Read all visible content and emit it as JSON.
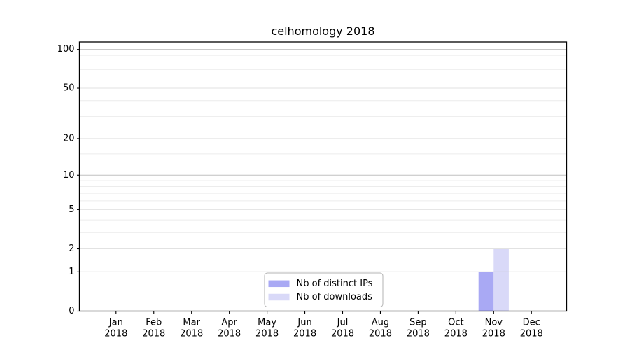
{
  "chart_data": {
    "type": "bar",
    "title": "celhomology 2018",
    "categories": [
      "Jan",
      "Feb",
      "Mar",
      "Apr",
      "May",
      "Jun",
      "Jul",
      "Aug",
      "Sep",
      "Oct",
      "Nov",
      "Dec"
    ],
    "x_sublabel_year": "2018",
    "series": [
      {
        "name": "Nb of distinct IPs",
        "color": "#a9a9f4",
        "values": [
          0,
          0,
          0,
          0,
          0,
          0,
          0,
          0,
          0,
          0,
          1,
          0
        ]
      },
      {
        "name": "Nb of downloads",
        "color": "#d9d9f8",
        "values": [
          0,
          0,
          0,
          0,
          0,
          0,
          0,
          0,
          0,
          0,
          2,
          0
        ]
      }
    ],
    "yscale": "log1p",
    "ylim": [
      0,
      114
    ],
    "y_ticks": [
      0,
      1,
      2,
      5,
      10,
      20,
      50,
      100
    ],
    "y_minor_gridlines": [
      3,
      4,
      6,
      7,
      8,
      9,
      15,
      30,
      40,
      60,
      70,
      80,
      90
    ],
    "xlabel": "",
    "ylabel": "",
    "grid": "horizontal",
    "legend": {
      "position": "bottom-center"
    },
    "style_colors": {
      "grid_minor": "#ececec",
      "grid_major": "#e2e2e2",
      "grid_decade": "#c0c0c0",
      "spine": "#000000",
      "legend_border": "#b3b3b3",
      "legend_background": "#ffffff"
    }
  }
}
